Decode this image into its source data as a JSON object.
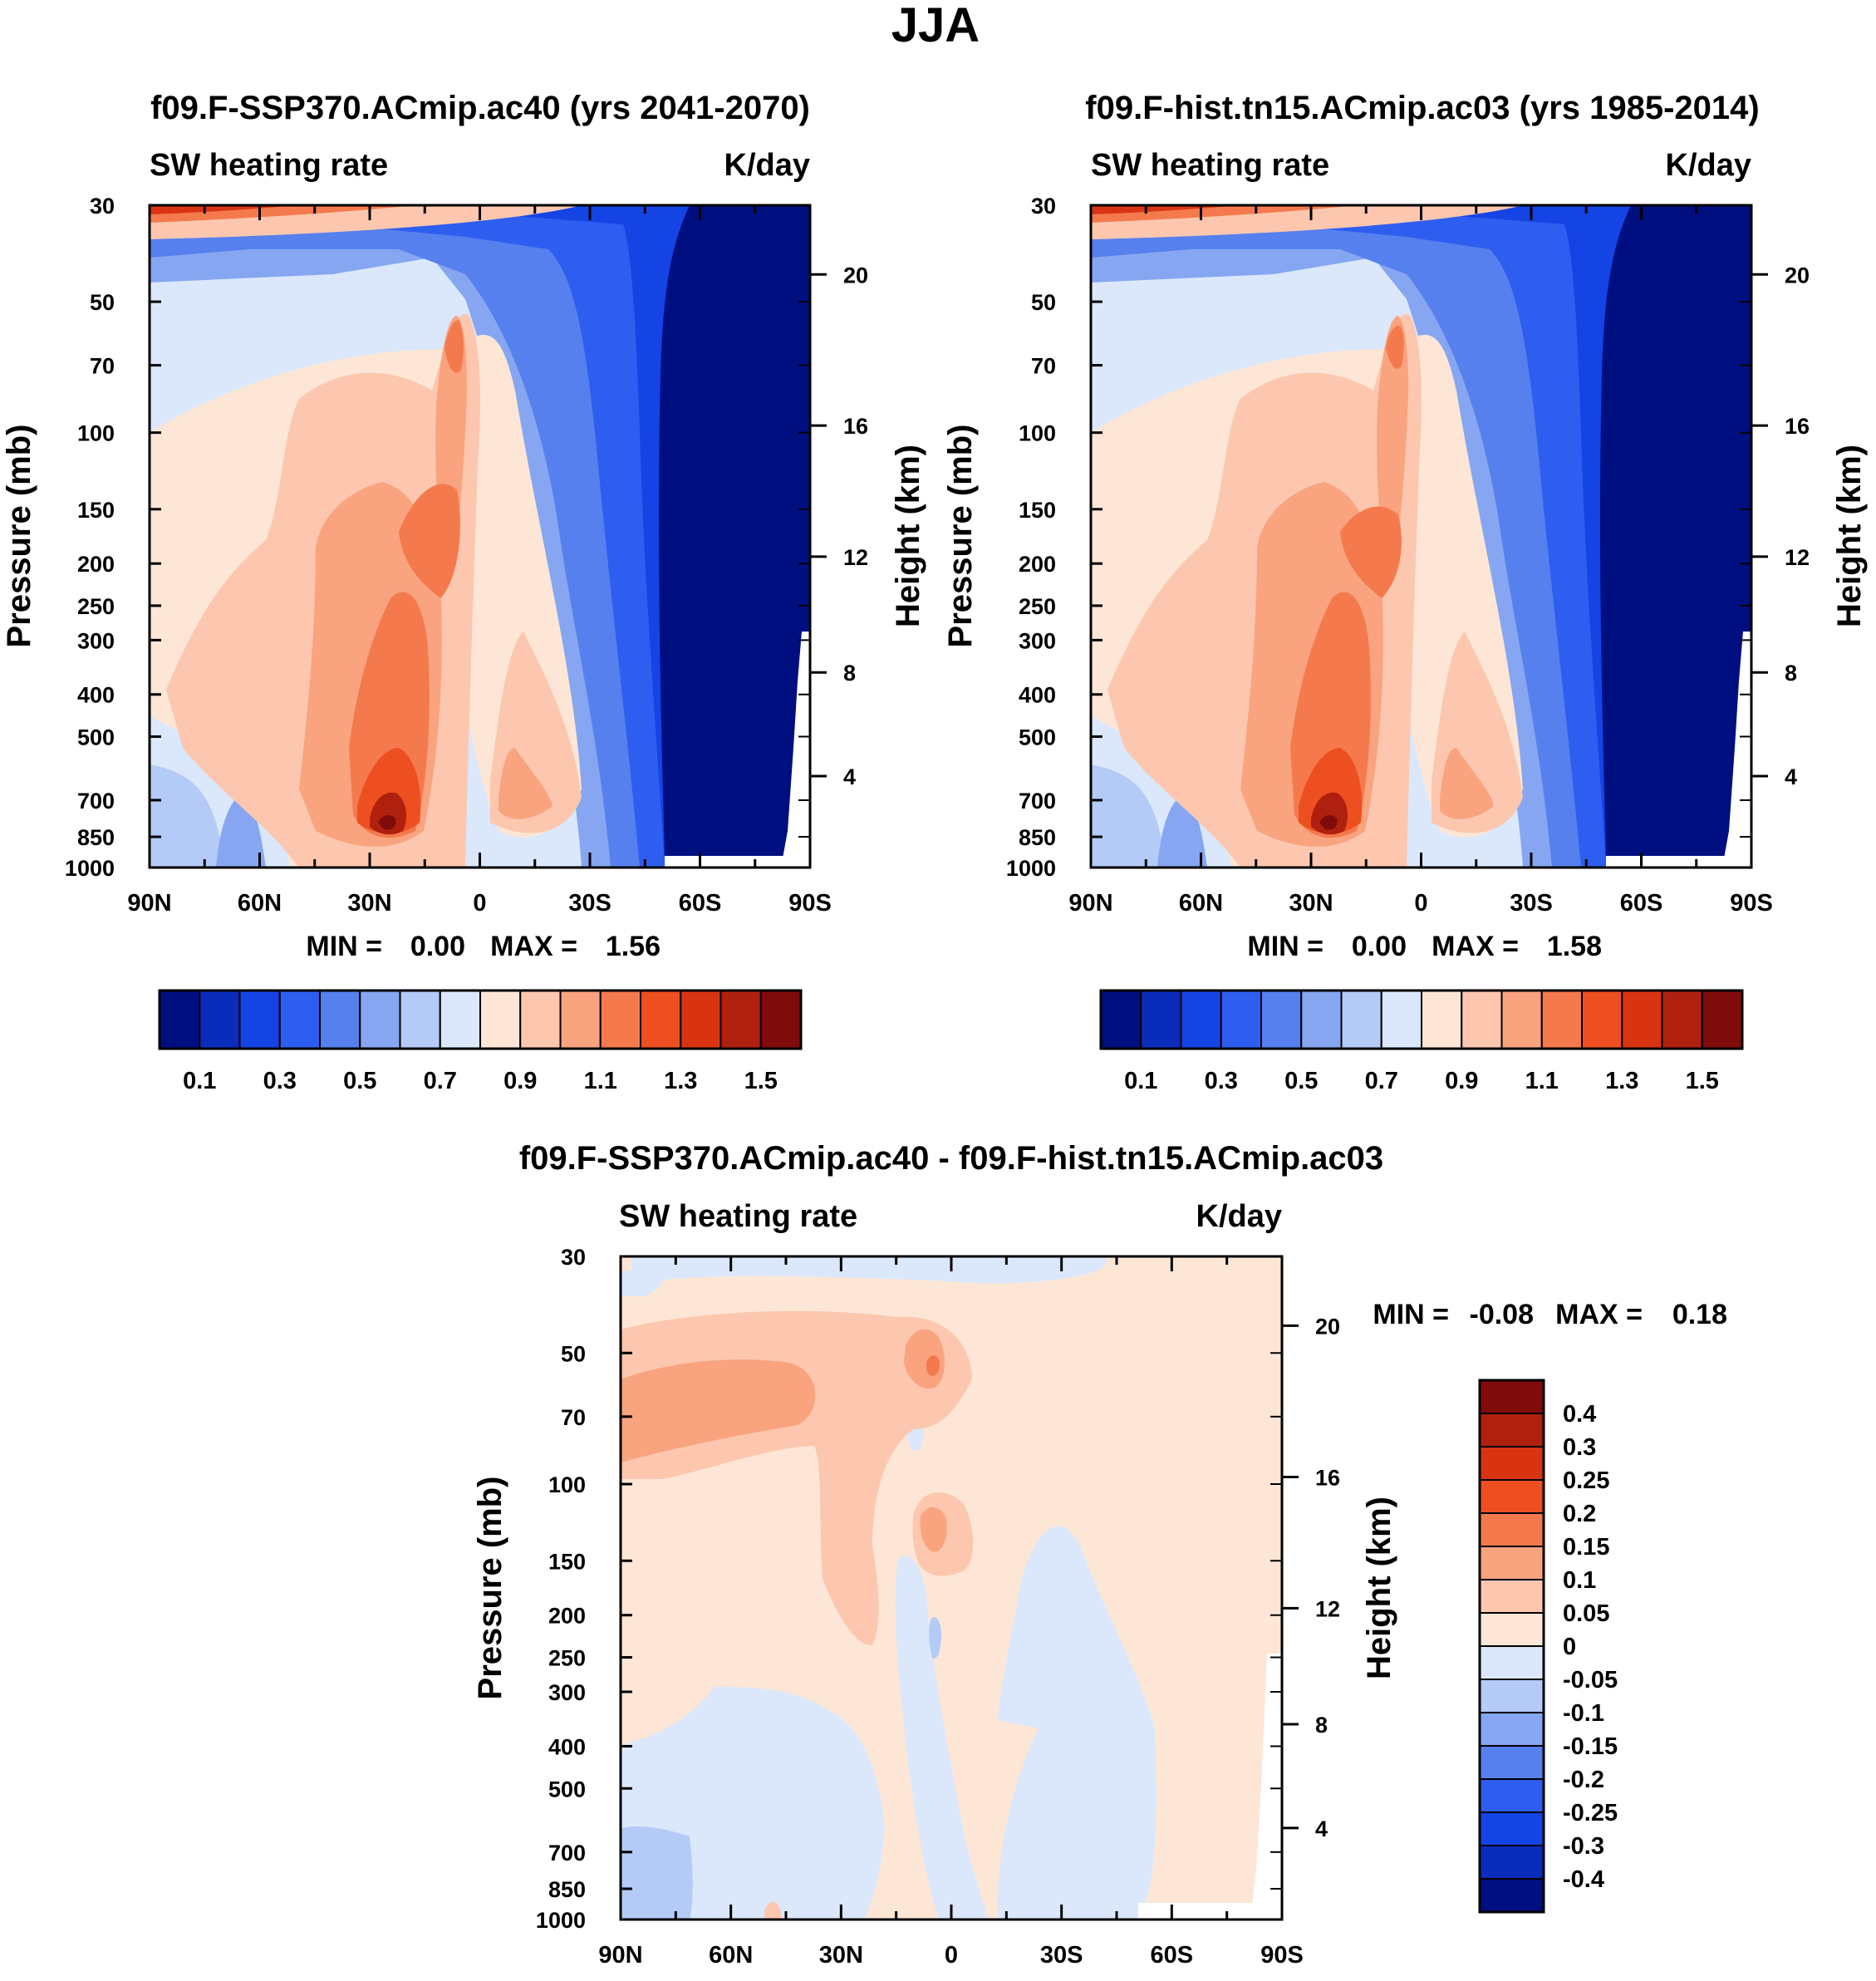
{
  "figure_title": "JJA",
  "chart_data": [
    {
      "type": "heatmap",
      "title": "f09.F-SSP370.ACmip.ac40 (yrs 2041-2070)",
      "left_label": "SW heating rate",
      "right_label": "K/day",
      "ylabel": "Pressure (mb)",
      "ylabel_right": "Height (km)",
      "x_ticks": [
        "90N",
        "60N",
        "30N",
        "0",
        "30S",
        "60S",
        "90S"
      ],
      "x_range": [
        90,
        -90
      ],
      "y_ticks": [
        "30",
        "50",
        "70",
        "100",
        "150",
        "200",
        "250",
        "300",
        "400",
        "500",
        "700",
        "850",
        "1000"
      ],
      "y_range_mb": [
        30,
        1000
      ],
      "height_ticks": [
        "20",
        "16",
        "12",
        "8",
        "4"
      ],
      "stats": {
        "min_label": "MIN =",
        "min": "0.00",
        "max_label": "MAX =",
        "max": "1.56"
      },
      "colorbar": {
        "labels": [
          "0.1",
          "0.3",
          "0.5",
          "0.7",
          "0.9",
          "1.1",
          "1.3",
          "1.5"
        ],
        "levels": [
          0.1,
          0.2,
          0.3,
          0.4,
          0.5,
          0.6,
          0.7,
          0.8,
          0.9,
          1.0,
          1.1,
          1.2,
          1.3,
          1.4,
          1.5
        ],
        "colors": [
          "#000f80",
          "#0a2cbb",
          "#1544e5",
          "#2d5ef0",
          "#5680ee",
          "#86a6f2",
          "#b4caf7",
          "#dbe8fb",
          "#fde6d6",
          "#fcc7ae",
          "#f9a37f",
          "#f47a4e",
          "#ee4f21",
          "#d93412",
          "#b0200f",
          "#800b0b"
        ]
      }
    },
    {
      "type": "heatmap",
      "title": "f09.F-hist.tn15.ACmip.ac03 (yrs 1985-2014)",
      "left_label": "SW heating rate",
      "right_label": "K/day",
      "ylabel": "Pressure (mb)",
      "ylabel_right": "Height (km)",
      "x_ticks": [
        "90N",
        "60N",
        "30N",
        "0",
        "30S",
        "60S",
        "90S"
      ],
      "x_range": [
        90,
        -90
      ],
      "y_ticks": [
        "30",
        "50",
        "70",
        "100",
        "150",
        "200",
        "250",
        "300",
        "400",
        "500",
        "700",
        "850",
        "1000"
      ],
      "y_range_mb": [
        30,
        1000
      ],
      "height_ticks": [
        "20",
        "16",
        "12",
        "8",
        "4"
      ],
      "stats": {
        "min_label": "MIN =",
        "min": "0.00",
        "max_label": "MAX =",
        "max": "1.58"
      },
      "colorbar": {
        "labels": [
          "0.1",
          "0.3",
          "0.5",
          "0.7",
          "0.9",
          "1.1",
          "1.3",
          "1.5"
        ],
        "levels": [
          0.1,
          0.2,
          0.3,
          0.4,
          0.5,
          0.6,
          0.7,
          0.8,
          0.9,
          1.0,
          1.1,
          1.2,
          1.3,
          1.4,
          1.5
        ],
        "colors": [
          "#000f80",
          "#0a2cbb",
          "#1544e5",
          "#2d5ef0",
          "#5680ee",
          "#86a6f2",
          "#b4caf7",
          "#dbe8fb",
          "#fde6d6",
          "#fcc7ae",
          "#f9a37f",
          "#f47a4e",
          "#ee4f21",
          "#d93412",
          "#b0200f",
          "#800b0b"
        ]
      }
    },
    {
      "type": "heatmap",
      "title": "f09.F-SSP370.ACmip.ac40 - f09.F-hist.tn15.ACmip.ac03",
      "left_label": "SW heating rate",
      "right_label": "K/day",
      "ylabel": "Pressure (mb)",
      "ylabel_right": "Height (km)",
      "x_ticks": [
        "90N",
        "60N",
        "30N",
        "0",
        "30S",
        "60S",
        "90S"
      ],
      "x_range": [
        90,
        -90
      ],
      "y_ticks": [
        "30",
        "50",
        "70",
        "100",
        "150",
        "200",
        "250",
        "300",
        "400",
        "500",
        "700",
        "850",
        "1000"
      ],
      "y_range_mb": [
        30,
        1000
      ],
      "height_ticks": [
        "20",
        "16",
        "12",
        "8",
        "4"
      ],
      "stats": {
        "min_label": "MIN =",
        "min": "-0.08",
        "max_label": "MAX =",
        "max": "0.18"
      },
      "colorbar": {
        "labels": [
          "0.4",
          "0.3",
          "0.25",
          "0.2",
          "0.15",
          "0.1",
          "0.05",
          "0",
          "-0.05",
          "-0.1",
          "-0.15",
          "-0.2",
          "-0.25",
          "-0.3",
          "-0.4"
        ],
        "colors_top_to_bottom": [
          "#800b0b",
          "#b0200f",
          "#d93412",
          "#ee4f21",
          "#f47a4e",
          "#f9a37f",
          "#fcc7ae",
          "#fde6d6",
          "#dbe8fb",
          "#b4caf7",
          "#86a6f2",
          "#5680ee",
          "#2d5ef0",
          "#1544e5",
          "#0a2cbb",
          "#000f80"
        ]
      }
    }
  ]
}
